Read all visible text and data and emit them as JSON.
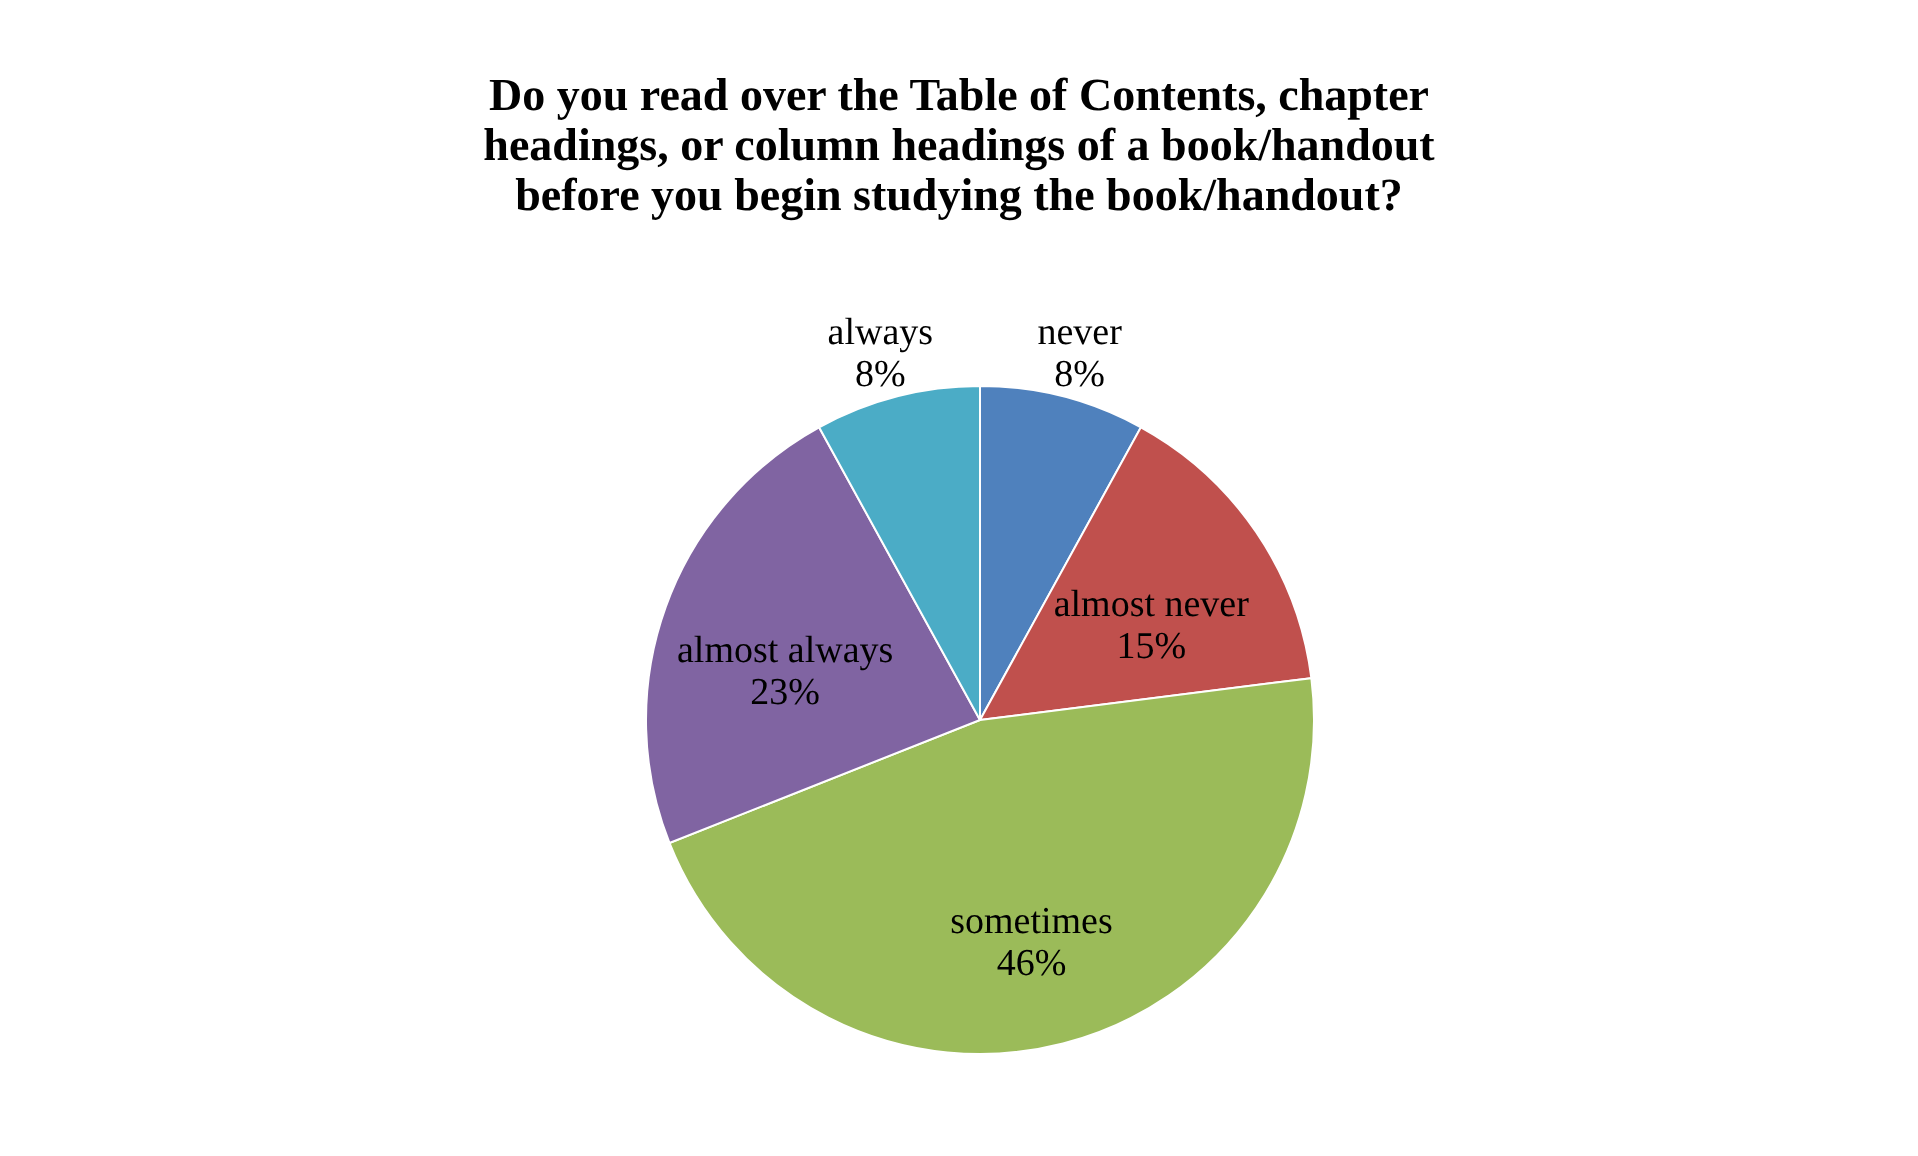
{
  "chart_data": {
    "type": "pie",
    "title": "Do you read over the Table of Contents, chapter headings, or column headings of a book/handout before you begin studying the book/handout?",
    "categories": [
      "never",
      "almost never",
      "sometimes",
      "almost always",
      "always"
    ],
    "values": [
      8,
      15,
      46,
      23,
      8
    ],
    "value_labels": [
      "8%",
      "15%",
      "46%",
      "23%",
      "8%"
    ],
    "colors": [
      "#4f81bd",
      "#c0504d",
      "#9bbb59",
      "#8064a2",
      "#4bacc6"
    ],
    "legend": false
  }
}
